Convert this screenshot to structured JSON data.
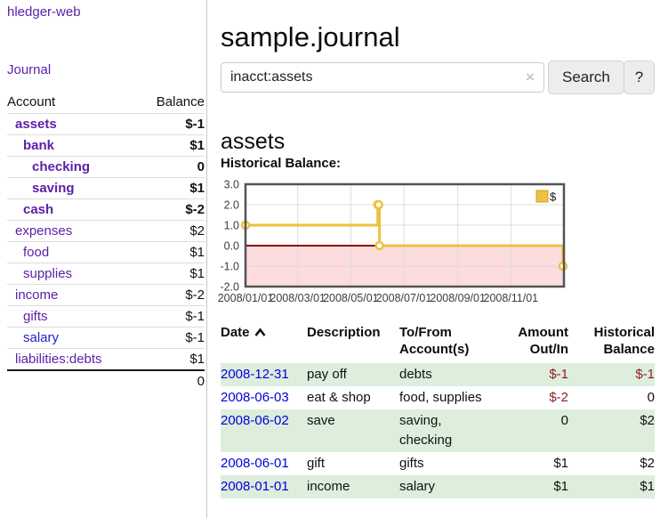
{
  "brand": "hledger-web",
  "nav": {
    "journal": "Journal"
  },
  "sidebar": {
    "header": {
      "account": "Account",
      "balance": "Balance"
    },
    "accounts": [
      {
        "name": "assets",
        "balance": "$-1"
      },
      {
        "name": "bank",
        "balance": "$1"
      },
      {
        "name": "checking",
        "balance": "0"
      },
      {
        "name": "saving",
        "balance": "$1"
      },
      {
        "name": "cash",
        "balance": "$-2"
      },
      {
        "name": "expenses",
        "balance": "$2"
      },
      {
        "name": "food",
        "balance": "$1"
      },
      {
        "name": "supplies",
        "balance": "$1"
      },
      {
        "name": "income",
        "balance": "$-2"
      },
      {
        "name": "gifts",
        "balance": "$-1"
      },
      {
        "name": "salary",
        "balance": "$-1"
      },
      {
        "name": "liabilities:debts",
        "balance": "$1"
      }
    ],
    "total": "0"
  },
  "header": {
    "title": "sample.journal"
  },
  "search": {
    "value": "inacct:assets",
    "clear": "×",
    "button": "Search",
    "help": "?"
  },
  "account_page": {
    "heading": "assets",
    "chart_title": "Historical Balance:"
  },
  "chart_data": {
    "type": "line",
    "title": "Historical Balance",
    "series": [
      {
        "name": "$",
        "color": "#edc240",
        "step": true,
        "points": [
          [
            "2008-01-01",
            1
          ],
          [
            "2008-06-01",
            2
          ],
          [
            "2008-06-02",
            2
          ],
          [
            "2008-06-03",
            0
          ],
          [
            "2008-12-31",
            -1
          ]
        ]
      }
    ],
    "x_domain": [
      "2008-01-01",
      "2009-01-01"
    ],
    "x_ticks": [
      {
        "t": "2008-01-01",
        "label": "2008/01/01"
      },
      {
        "t": "2008-03-01",
        "label": "2008/03/01"
      },
      {
        "t": "2008-05-01",
        "label": "2008/05/01"
      },
      {
        "t": "2008-07-01",
        "label": "2008/07/01"
      },
      {
        "t": "2008-09-01",
        "label": "2008/09/01"
      },
      {
        "t": "2008-11-01",
        "label": "2008/11/01"
      }
    ],
    "y_ticks": [
      {
        "v": 3,
        "label": "3.0"
      },
      {
        "v": 2,
        "label": "2.0"
      },
      {
        "v": 1,
        "label": "1.0"
      },
      {
        "v": 0,
        "label": "0.0"
      },
      {
        "v": -1,
        "label": "-1.0"
      },
      {
        "v": -2,
        "label": "-2.0"
      }
    ],
    "ylim": [
      -2,
      3
    ],
    "grid": true,
    "background": "#ffffff",
    "border_color": "#545454",
    "grid_color": "#dcdcdc",
    "zero_line_color": "#8b0000",
    "negative_region_color": "#fcdcdc",
    "legend": {
      "label": "$",
      "position": "top-right"
    }
  },
  "register": {
    "columns": [
      "Date",
      "Description",
      "To/From Account(s)",
      "Amount Out/In",
      "Historical Balance"
    ],
    "sort_indicator": "ascending",
    "rows": [
      {
        "date": "2008-12-31",
        "description": "pay off",
        "accounts": "debts",
        "amount": "$-1",
        "balance": "$-1"
      },
      {
        "date": "2008-06-03",
        "description": "eat & shop",
        "accounts": "food, supplies",
        "amount": "$-2",
        "balance": "0"
      },
      {
        "date": "2008-06-02",
        "description": "save",
        "accounts": "saving, checking",
        "amount": "0",
        "balance": "$2"
      },
      {
        "date": "2008-06-01",
        "description": "gift",
        "accounts": "gifts",
        "amount": "$1",
        "balance": "$2"
      },
      {
        "date": "2008-01-01",
        "description": "income",
        "accounts": "salary",
        "amount": "$1",
        "balance": "$1"
      }
    ]
  }
}
